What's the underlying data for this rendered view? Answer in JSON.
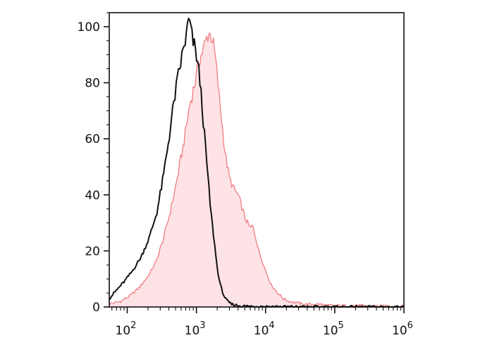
{
  "chart_data": {
    "type": "area",
    "xscale": "log",
    "xlim": [
      55,
      1000000
    ],
    "ylim": [
      0,
      105
    ],
    "title": "",
    "xlabel": "",
    "ylabel": "",
    "grid": false,
    "legend": "none",
    "y_ticks": [
      0,
      20,
      40,
      60,
      80,
      100
    ],
    "x_ticks": [
      {
        "value": 100,
        "base": "10",
        "exp": "2"
      },
      {
        "value": 1000,
        "base": "10",
        "exp": "3"
      },
      {
        "value": 10000,
        "base": "10",
        "exp": "4"
      },
      {
        "value": 100000,
        "base": "10",
        "exp": "5"
      },
      {
        "value": 1000000,
        "base": "10",
        "exp": "6"
      }
    ],
    "series": [
      {
        "style": "filled",
        "color": "#f07d83",
        "fill": "#fde3e5",
        "x": [
          55,
          80,
          110,
          150,
          200,
          260,
          330,
          420,
          520,
          650,
          800,
          950,
          1100,
          1300,
          1500,
          1700,
          1900,
          2200,
          2600,
          3000,
          3500,
          4000,
          4500,
          5000,
          5500,
          6000,
          6500,
          7000,
          8000,
          10000,
          12000,
          15000,
          18000,
          22000,
          28000,
          35000,
          45000,
          60000,
          80000,
          100000,
          200000,
          500000,
          1000000
        ],
        "y": [
          1,
          2,
          4,
          7,
          11,
          16,
          24,
          34,
          45,
          58,
          72,
          80,
          88,
          93,
          98,
          96,
          88,
          72,
          55,
          46,
          42,
          40,
          36,
          32,
          30,
          28,
          29,
          26,
          20,
          13,
          8,
          5,
          3,
          2,
          1.5,
          1,
          1,
          1,
          0.5,
          0.5,
          0.5,
          0.3,
          0.2
        ]
      },
      {
        "style": "line",
        "color": "#111111",
        "x": [
          55,
          70,
          90,
          120,
          160,
          210,
          270,
          330,
          400,
          480,
          560,
          650,
          720,
          780,
          850,
          930,
          1000,
          1100,
          1200,
          1300,
          1450,
          1600,
          1800,
          2000,
          2200,
          2500,
          2800,
          3200,
          4000,
          5000,
          8000,
          20000,
          100000,
          1000000
        ],
        "y": [
          3,
          6,
          9,
          13,
          18,
          25,
          34,
          46,
          60,
          74,
          84,
          92,
          97,
          103,
          97,
          93,
          90,
          83,
          73,
          62,
          48,
          35,
          24,
          14,
          8,
          4,
          2,
          1,
          0.5,
          0.3,
          0.2,
          0.1,
          0,
          0
        ]
      }
    ]
  }
}
